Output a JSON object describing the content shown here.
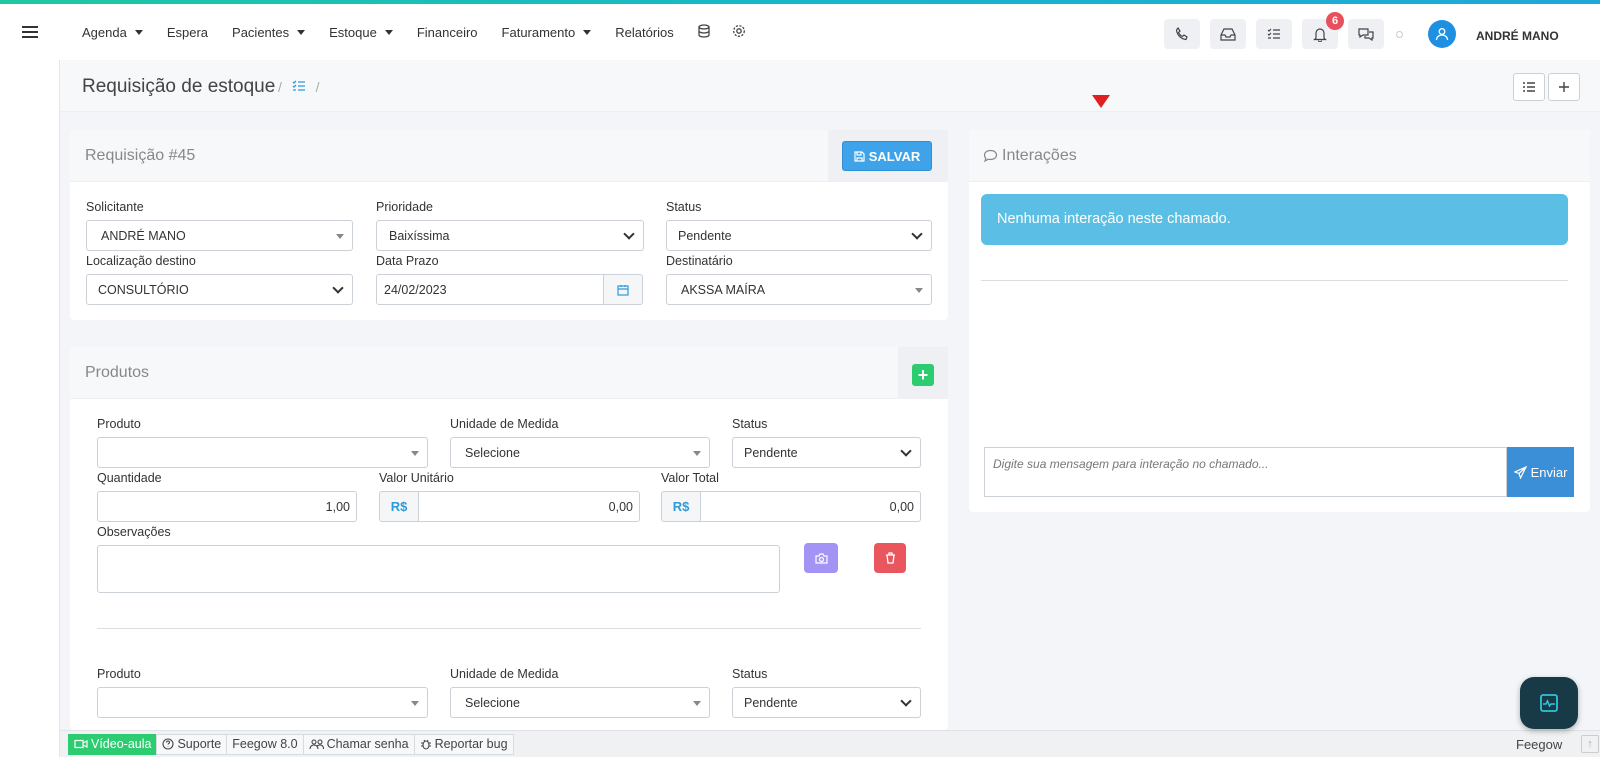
{
  "nav": {
    "menu": [
      {
        "label": "Agenda",
        "dropdown": true
      },
      {
        "label": "Espera",
        "dropdown": false
      },
      {
        "label": "Pacientes",
        "dropdown": true
      },
      {
        "label": "Estoque",
        "dropdown": true
      },
      {
        "label": "Financeiro",
        "dropdown": false
      },
      {
        "label": "Faturamento",
        "dropdown": true
      },
      {
        "label": "Relatórios",
        "dropdown": false
      }
    ],
    "notifications_count": "6",
    "username": "ANDRÉ MANO"
  },
  "page": {
    "title": "Requisição de estoque",
    "breadcrumb_sep": "/"
  },
  "requisicao": {
    "title": "Requisição #45",
    "save_label": "SALVAR",
    "solicitante_label": "Solicitante",
    "solicitante_value": "ANDRÉ MANO",
    "prioridade_label": "Prioridade",
    "prioridade_value": "Baixíssima",
    "status_label": "Status",
    "status_value": "Pendente",
    "localizacao_label": "Localização destino",
    "localizacao_value": "CONSULTÓRIO",
    "prazo_label": "Data Prazo",
    "prazo_value": "24/02/2023",
    "destinatario_label": "Destinatário",
    "destinatario_value": "AKSSA MAÍRA"
  },
  "produtos": {
    "title": "Produtos",
    "item1": {
      "produto_label": "Produto",
      "produto_value": "",
      "unidade_label": "Unidade de Medida",
      "unidade_value": "Selecione",
      "status_label": "Status",
      "status_value": "Pendente",
      "quantidade_label": "Quantidade",
      "quantidade_value": "1,00",
      "valor_unit_label": "Valor Unitário",
      "valor_unit_value": "0,00",
      "valor_total_label": "Valor Total",
      "valor_total_value": "0,00",
      "currency": "R$",
      "obs_label": "Observações"
    },
    "item2": {
      "produto_label": "Produto",
      "unidade_label": "Unidade de Medida",
      "unidade_value": "Selecione",
      "status_label": "Status",
      "status_value": "Pendente"
    }
  },
  "interacoes": {
    "title": "Interações",
    "empty_message": "Nenhuma interação neste chamado.",
    "message_placeholder": "Digite sua mensagem para interação no chamado...",
    "send_label": "Enviar"
  },
  "footer": {
    "video": "Vídeo-aula",
    "suporte": "Suporte",
    "version": "Feegow 8.0",
    "chamar_senha": "Chamar senha",
    "reportar_bug": "Reportar bug",
    "brand": "Feegow"
  },
  "colors": {
    "primary": "#3ea3e9",
    "success": "#2ecc71",
    "danger": "#e9565e",
    "info": "#5bbfe5"
  }
}
